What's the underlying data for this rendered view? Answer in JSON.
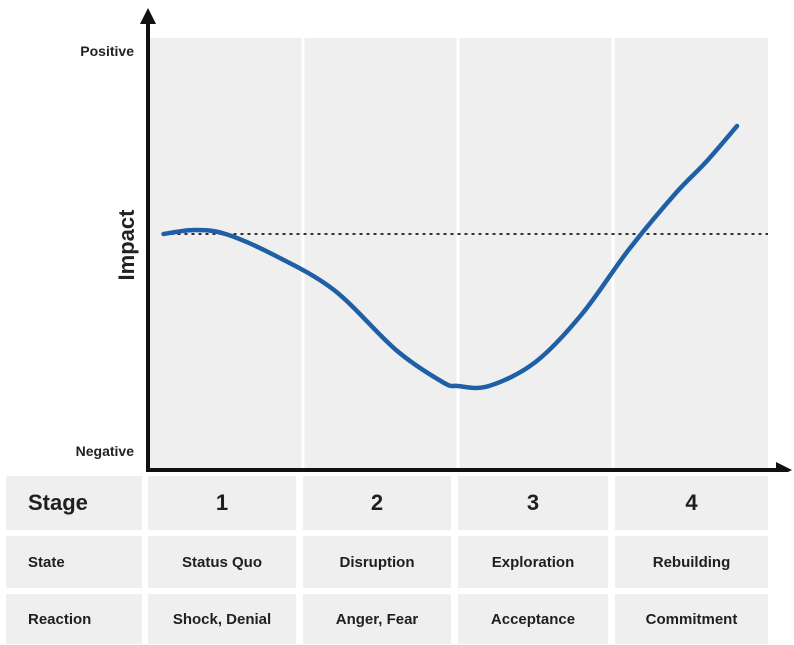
{
  "chart_data": {
    "type": "line",
    "ylabel": "Impact",
    "y_axis_labels": {
      "top": "Positive",
      "bottom": "Negative"
    },
    "ylim": [
      0,
      100
    ],
    "xlim": [
      0,
      4
    ],
    "baseline": 54,
    "baseline_style": "dotted",
    "x": [
      0.1,
      0.3,
      0.5,
      0.8,
      1.2,
      1.6,
      1.9,
      2.0,
      2.2,
      2.5,
      2.8,
      3.1,
      3.4,
      3.6,
      3.8
    ],
    "y": [
      54,
      55,
      54,
      49,
      40,
      25,
      17,
      16,
      16,
      22,
      34,
      50,
      64,
      72,
      81
    ],
    "line_color": "#1f5fa6",
    "grid": "vertical band dividers"
  },
  "table": {
    "header": {
      "label": "Stage",
      "stages": [
        "1",
        "2",
        "3",
        "4"
      ]
    },
    "rows": [
      {
        "id": "state",
        "label": "State",
        "values": [
          "Status Quo",
          "Disruption",
          "Exploration",
          "Rebuilding"
        ]
      },
      {
        "id": "reaction",
        "label": "Reaction",
        "values": [
          "Shock, Denial",
          "Anger, Fear",
          "Acceptance",
          "Commitment"
        ]
      }
    ]
  },
  "colors": {
    "panel": "#efefef",
    "axis": "#111111",
    "curve": "#1f5fa6",
    "divider": "#ffffff"
  }
}
